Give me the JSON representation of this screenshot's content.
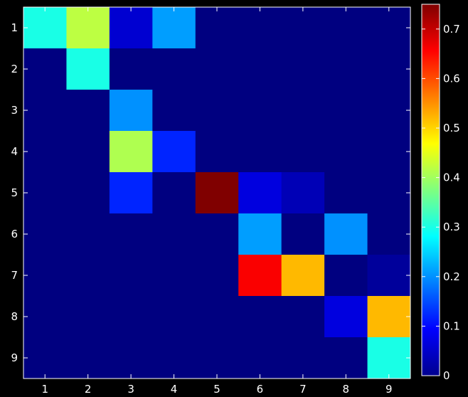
{
  "chart_data": {
    "type": "heatmap",
    "title": "",
    "xlabel": "",
    "ylabel": "",
    "x_categories": [
      "1",
      "2",
      "3",
      "4",
      "5",
      "6",
      "7",
      "8",
      "9"
    ],
    "y_categories": [
      "1",
      "2",
      "3",
      "4",
      "5",
      "6",
      "7",
      "8",
      "9"
    ],
    "values": [
      [
        0.3,
        0.42,
        0.06,
        0.21,
        0.0,
        0.0,
        0.0,
        0.0,
        0.0
      ],
      [
        0.0,
        0.3,
        0.0,
        0.0,
        0.0,
        0.0,
        0.0,
        0.0,
        0.0
      ],
      [
        0.0,
        0.0,
        0.2,
        0.0,
        0.0,
        0.0,
        0.0,
        0.0,
        0.0
      ],
      [
        0.0,
        0.0,
        0.41,
        0.12,
        0.0,
        0.0,
        0.0,
        0.0,
        0.0
      ],
      [
        0.0,
        0.0,
        0.12,
        0.0,
        0.75,
        0.07,
        0.04,
        0.0,
        0.0
      ],
      [
        0.0,
        0.0,
        0.0,
        0.0,
        0.0,
        0.21,
        0.0,
        0.2,
        0.0
      ],
      [
        0.0,
        0.0,
        0.0,
        0.0,
        0.0,
        0.66,
        0.52,
        0.0,
        0.02
      ],
      [
        0.0,
        0.0,
        0.0,
        0.0,
        0.0,
        0.0,
        0.0,
        0.07,
        0.52
      ],
      [
        0.0,
        0.0,
        0.0,
        0.0,
        0.0,
        0.0,
        0.0,
        0.0,
        0.3
      ]
    ],
    "colormap": "jet",
    "color_range": [
      0,
      0.75
    ],
    "colorbar_ticks": [
      "0",
      "0.1",
      "0.2",
      "0.3",
      "0.4",
      "0.5",
      "0.6",
      "0.7"
    ],
    "colorbar_placement": "right",
    "grid": false,
    "background_color": "#000000",
    "text_color": "#ffffff"
  }
}
